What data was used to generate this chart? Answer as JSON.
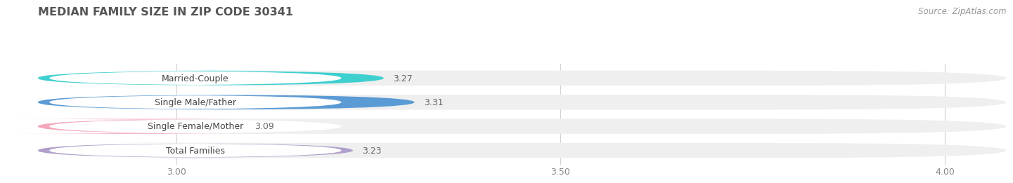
{
  "title": "MEDIAN FAMILY SIZE IN ZIP CODE 30341",
  "source": "Source: ZipAtlas.com",
  "categories": [
    "Married-Couple",
    "Single Male/Father",
    "Single Female/Mother",
    "Total Families"
  ],
  "values": [
    3.27,
    3.31,
    3.09,
    3.23
  ],
  "bar_colors": [
    "#3ecfcf",
    "#5b9bd5",
    "#f4a7b9",
    "#b09fca"
  ],
  "bar_bg_color": "#efefef",
  "label_bg_color": "#ffffff",
  "xlim_min": 2.82,
  "xlim_max": 4.08,
  "xticks": [
    3.0,
    3.5,
    4.0
  ],
  "bar_height": 0.62,
  "background_color": "#ffffff",
  "title_fontsize": 11.5,
  "label_fontsize": 9,
  "value_fontsize": 9,
  "tick_fontsize": 9,
  "source_fontsize": 8.5
}
